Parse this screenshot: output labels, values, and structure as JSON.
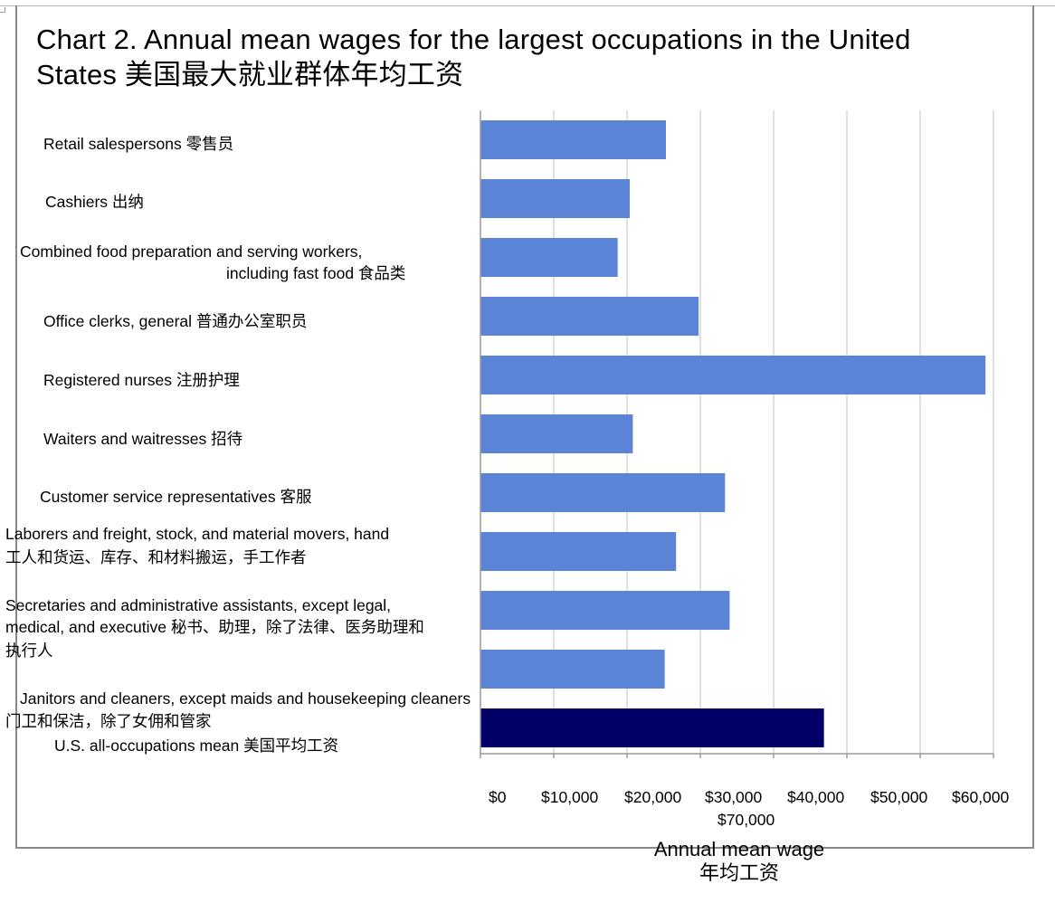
{
  "title": "Chart 2. Annual mean wages for the largest occupations in the United States  美国最大就业群体年均工资",
  "colors": {
    "bar": "#5b84d6",
    "highlight": "#000066",
    "grid": "#d6d6d6",
    "axis": "#9a9a9a",
    "frame": "#888888"
  },
  "labels": {
    "retail": "Retail salespersons 零售员",
    "cashiers": "Cashiers 出纳",
    "food_1": "Combined food preparation and serving workers,",
    "food_2": "including fast food 食品类",
    "office": "Office clerks, general 普通办公室职员",
    "nurses": "Registered nurses 注册护理",
    "waiters": "Waiters and waitresses 招待",
    "customer": "Customer service representatives 客服",
    "laborers_1": "Laborers and freight, stock, and material movers, hand",
    "laborers_2": "工人和货运、库存、和材料搬运，手工作者",
    "secretaries_1": "Secretaries and administrative assistants, except legal,",
    "secretaries_2": "medical, and executive 秘书、助理，除了法律、医务助理和",
    "secretaries_3": "执行人",
    "janitors_1": "Janitors and cleaners, except maids and housekeeping cleaners",
    "janitors_2": "门卫和保洁，除了女佣和管家",
    "all": "U.S. all-occupations mean 美国平均工资"
  },
  "chart_data": {
    "type": "bar",
    "orientation": "horizontal",
    "title": "Chart 2. Annual mean wages for the largest occupations in the United States  美国最大就业群体年均工资",
    "xlabel": "Annual mean wage 年均工资",
    "ylabel": "",
    "xlim": [
      0,
      70000
    ],
    "grid": true,
    "xticks": [
      "$0",
      "$10,000",
      "$20,000",
      "$30,000",
      "$40,000",
      "$50,000",
      "$60,000",
      "$70,000"
    ],
    "categories": [
      "Retail salespersons 零售员",
      "Cashiers 出纳",
      "Combined food preparation and serving workers, including fast food 食品类",
      "Office clerks, general 普通办公室职员",
      "Registered nurses 注册护理",
      "Waiters and waitresses 招待",
      "Customer service representatives 客服",
      "Laborers and freight, stock, and material movers, hand 工人和货运、库存、和材料搬运，手工作者",
      "Secretaries and administrative assistants, except legal, medical, and executive 秘书、助理，除了法律、医务助理和执行人",
      "Janitors and cleaners, except maids and housekeeping cleaners 门卫和保洁，除了女佣和管家",
      "U.S. all-occupations mean 美国平均工资"
    ],
    "values": [
      25310,
      20370,
      18720,
      29770,
      68910,
      20790,
      33370,
      26690,
      34000,
      25140,
      46870
    ],
    "highlight_index": 10
  }
}
